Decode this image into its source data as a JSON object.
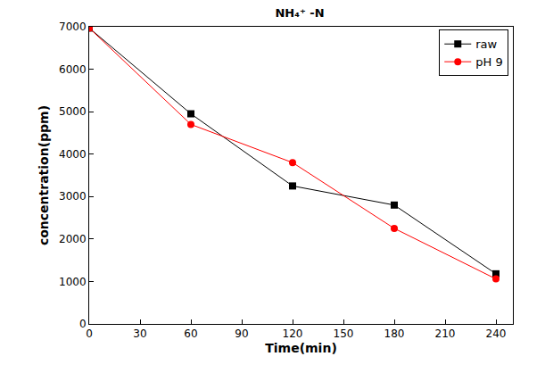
{
  "chart_data": {
    "type": "line",
    "title": "NH₄⁺ -N",
    "x_label": "Time(min)",
    "y_label": "concentration(ppm)",
    "x": [
      0,
      60,
      120,
      180,
      240
    ],
    "series": [
      {
        "name": "raw",
        "color": "#000000",
        "marker": "square",
        "line_style": "solid",
        "values": [
          6970,
          4950,
          3250,
          2800,
          1180
        ]
      },
      {
        "name": "pH 9",
        "color": "#ff0000",
        "marker": "circle",
        "line_style": "solid",
        "values": [
          6970,
          4700,
          3800,
          2250,
          1060
        ]
      }
    ],
    "xlim": [
      0,
      250
    ],
    "xticks": [
      0,
      30,
      60,
      90,
      120,
      150,
      180,
      210,
      240
    ],
    "ylim": [
      0,
      7000
    ],
    "yticks": [
      0,
      1000,
      2000,
      3000,
      4000,
      5000,
      6000,
      7000
    ],
    "grid": false,
    "legend": "top-right"
  }
}
